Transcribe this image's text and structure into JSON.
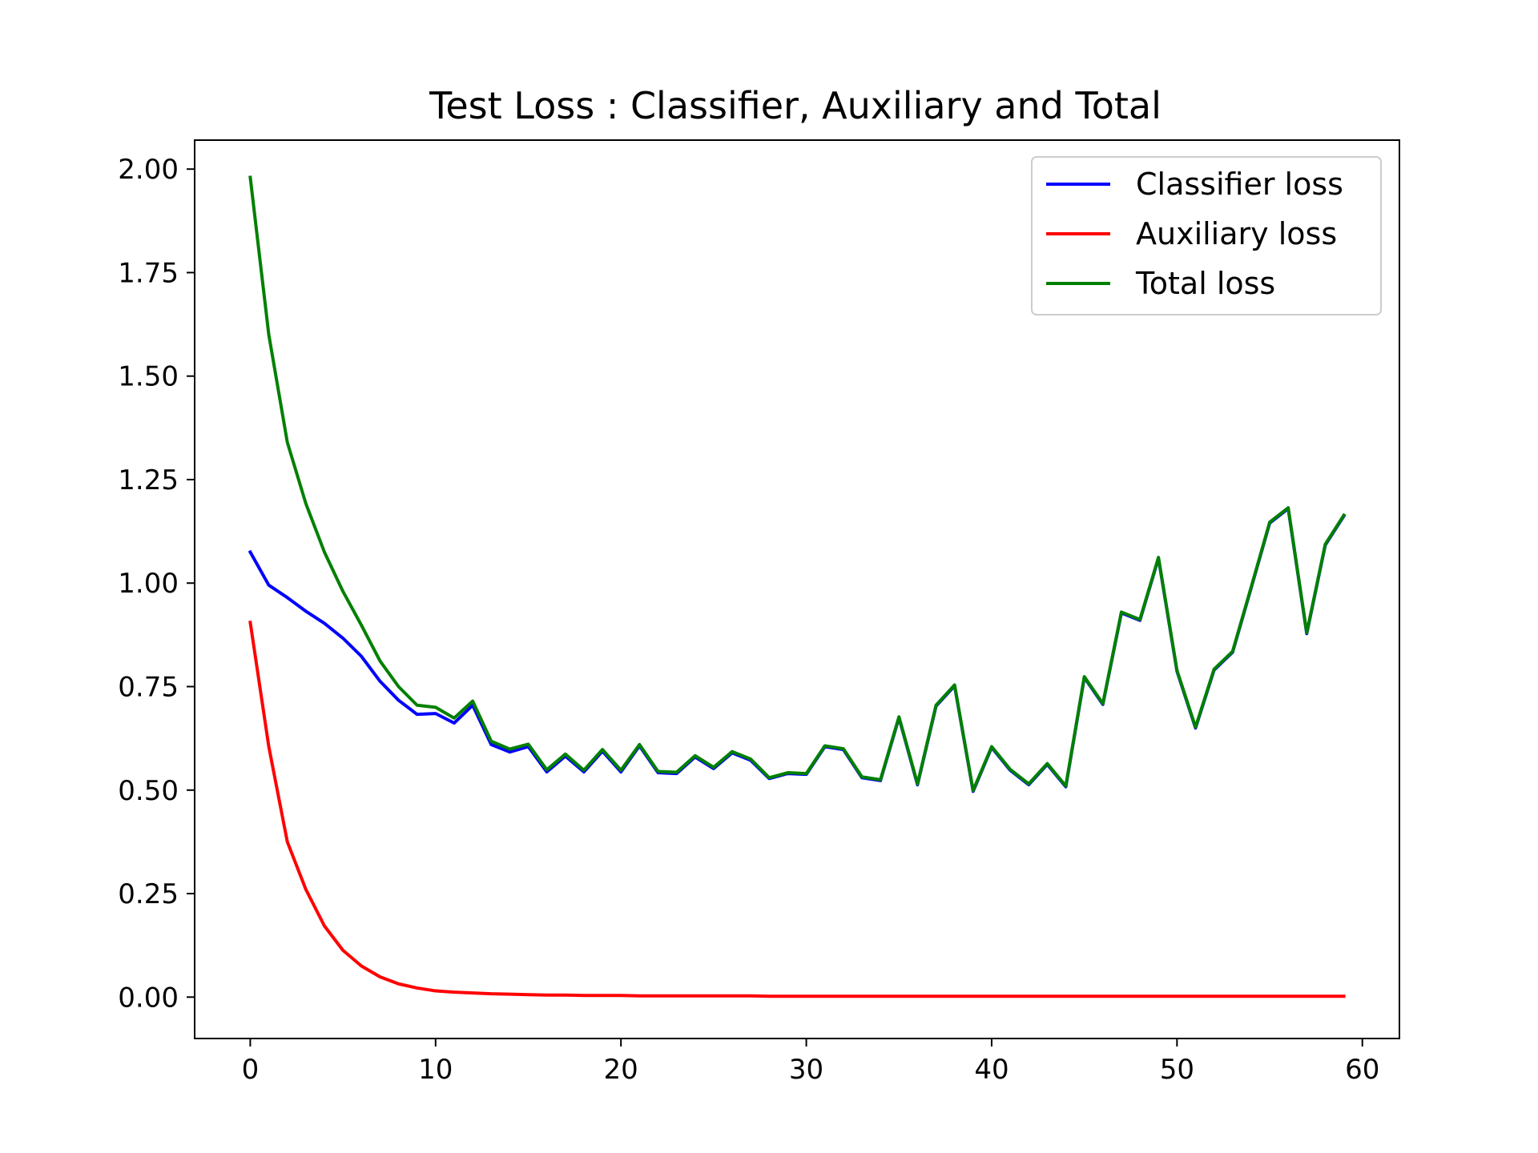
{
  "chart_data": {
    "type": "line",
    "title": "Test Loss : Classifier, Auxiliary and Total",
    "xlabel": "",
    "ylabel": "",
    "xlim": [
      -3,
      62
    ],
    "ylim": [
      -0.1,
      2.07
    ],
    "xticks": [
      "0",
      "10",
      "20",
      "30",
      "40",
      "50",
      "60"
    ],
    "yticks": [
      "0.00",
      "0.25",
      "0.50",
      "0.75",
      "1.00",
      "1.25",
      "1.50",
      "1.75",
      "2.00"
    ],
    "legend_position": "top-right",
    "grid": false,
    "series": [
      {
        "name": "Classifier loss",
        "color": "#0000ff",
        "values": [
          1.075,
          0.995,
          0.965,
          0.932,
          0.903,
          0.867,
          0.823,
          0.763,
          0.717,
          0.683,
          0.685,
          0.662,
          0.705,
          0.61,
          0.592,
          0.605,
          0.544,
          0.582,
          0.544,
          0.594,
          0.544,
          0.607,
          0.542,
          0.54,
          0.58,
          0.552,
          0.59,
          0.572,
          0.528,
          0.54,
          0.538,
          0.605,
          0.598,
          0.53,
          0.523,
          0.675,
          0.513,
          0.703,
          0.752,
          0.497,
          0.603,
          0.548,
          0.513,
          0.562,
          0.508,
          0.772,
          0.707,
          0.928,
          0.91,
          1.06,
          0.787,
          0.65,
          0.79,
          0.833,
          0.988,
          1.145,
          1.18,
          0.878,
          1.092,
          1.162
        ]
      },
      {
        "name": "Auxiliary loss",
        "color": "#ff0000",
        "values": [
          0.905,
          0.605,
          0.375,
          0.26,
          0.172,
          0.113,
          0.075,
          0.049,
          0.032,
          0.022,
          0.015,
          0.012,
          0.01,
          0.008,
          0.007,
          0.006,
          0.005,
          0.005,
          0.004,
          0.004,
          0.004,
          0.003,
          0.003,
          0.003,
          0.003,
          0.003,
          0.003,
          0.003,
          0.002,
          0.002,
          0.002,
          0.002,
          0.002,
          0.002,
          0.002,
          0.002,
          0.002,
          0.002,
          0.002,
          0.002,
          0.002,
          0.002,
          0.002,
          0.002,
          0.002,
          0.002,
          0.002,
          0.002,
          0.002,
          0.002,
          0.002,
          0.002,
          0.002,
          0.002,
          0.002,
          0.002,
          0.002,
          0.002,
          0.002,
          0.002
        ]
      },
      {
        "name": "Total loss",
        "color": "#008000",
        "values": [
          1.98,
          1.6,
          1.34,
          1.192,
          1.075,
          0.98,
          0.898,
          0.812,
          0.75,
          0.705,
          0.7,
          0.674,
          0.715,
          0.618,
          0.599,
          0.611,
          0.549,
          0.587,
          0.548,
          0.598,
          0.548,
          0.61,
          0.545,
          0.543,
          0.583,
          0.555,
          0.593,
          0.575,
          0.53,
          0.542,
          0.54,
          0.607,
          0.6,
          0.532,
          0.525,
          0.677,
          0.515,
          0.705,
          0.754,
          0.499,
          0.605,
          0.55,
          0.515,
          0.564,
          0.51,
          0.774,
          0.709,
          0.93,
          0.912,
          1.062,
          0.789,
          0.652,
          0.792,
          0.835,
          0.99,
          1.147,
          1.182,
          0.88,
          1.094,
          1.164
        ]
      }
    ]
  }
}
